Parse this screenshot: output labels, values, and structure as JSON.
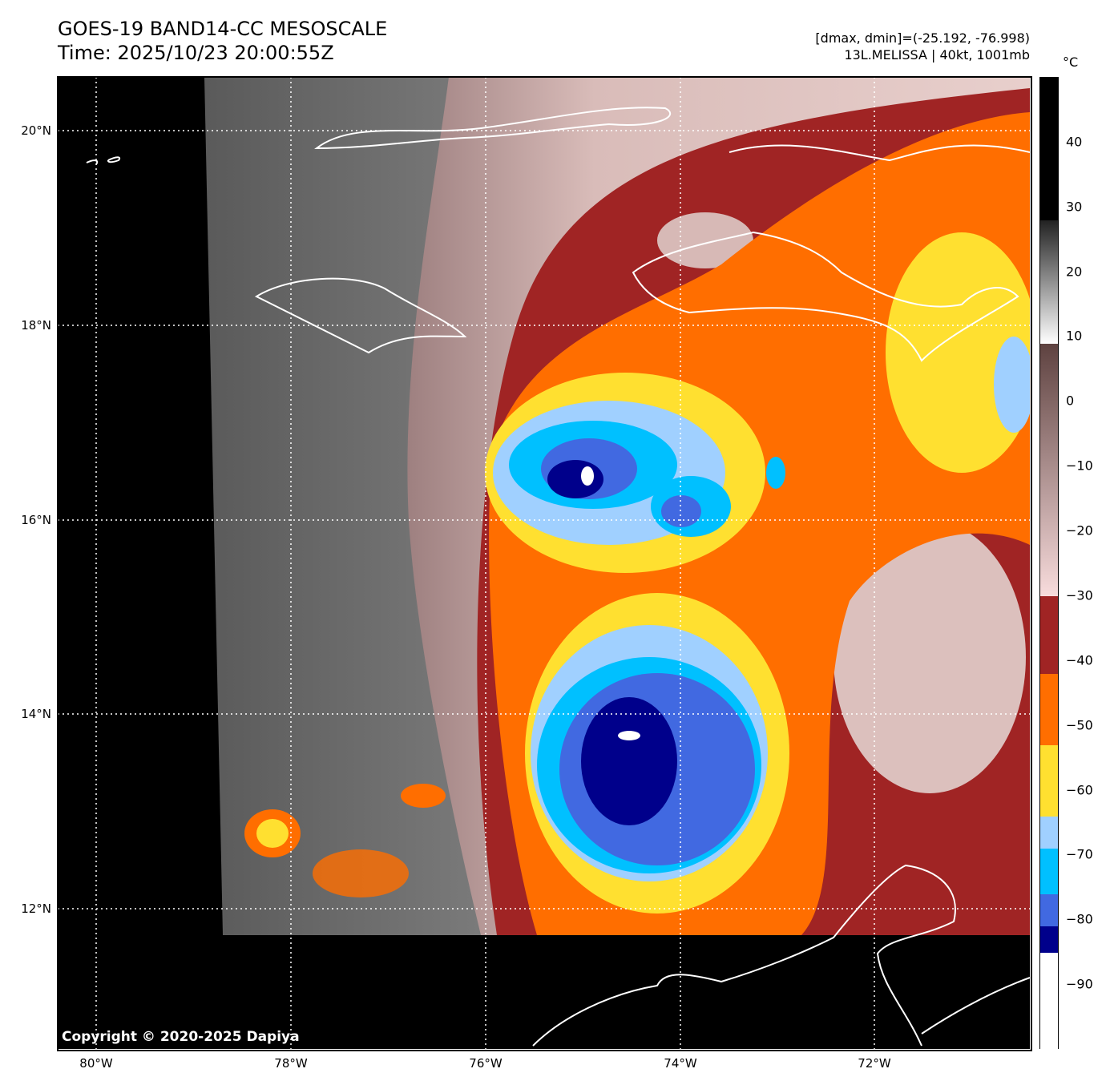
{
  "header": {
    "title": "GOES-19 BAND14-CC MESOSCALE",
    "time": "Time: 2025/10/23 20:00:55Z",
    "stats": "[dmax, dmin]=(-25.192, -76.998)",
    "storm": "13L.MELISSA | 40kt, 1001mb"
  },
  "copyright": "Copyright © 2020-2025 Dapiya",
  "chart_data": {
    "type": "heatmap",
    "title": "GOES-19 BAND14-CC MESOSCALE",
    "description_fields": {
      "dmax": -25.192,
      "dmin": -76.998,
      "storm": "13L.MELISSA",
      "intensity_kt": 40,
      "pressure_mb": 1001
    },
    "x_ticks": [
      {
        "value": -80,
        "label": "80°W"
      },
      {
        "value": -78,
        "label": "78°W"
      },
      {
        "value": -76,
        "label": "76°W"
      },
      {
        "value": -74,
        "label": "74°W"
      },
      {
        "value": -72,
        "label": "72°W"
      }
    ],
    "y_ticks": [
      {
        "value": 20,
        "label": "20°N"
      },
      {
        "value": 18,
        "label": "18°N"
      },
      {
        "value": 16,
        "label": "16°N"
      },
      {
        "value": 14,
        "label": "14°N"
      },
      {
        "value": 12,
        "label": "12°N"
      }
    ],
    "xlim": [
      -80.4,
      -70.4
    ],
    "ylim": [
      10.55,
      20.55
    ],
    "grid": true,
    "colorbar": {
      "unit": "°C",
      "range": [
        -100,
        50
      ],
      "ticks": [
        40,
        30,
        20,
        10,
        0,
        -10,
        -20,
        -30,
        -40,
        -50,
        -60,
        -70,
        -80,
        -90
      ],
      "tick_labels": [
        "40",
        "30",
        "20",
        "10",
        "0",
        "−10",
        "−20",
        "−30",
        "−40",
        "−50",
        "−60",
        "−70",
        "−80",
        "−90"
      ],
      "segments": [
        {
          "from": 28,
          "to": 50,
          "color": "#000000"
        },
        {
          "from": 9,
          "to": 28,
          "color": "gradient #222222→#ffffff"
        },
        {
          "from": -30,
          "to": 9,
          "color": "gradient #f8dcdc→#5e4240"
        },
        {
          "from": -42,
          "to": -30,
          "color": "#a02424"
        },
        {
          "from": -53,
          "to": -42,
          "color": "#ff6e00"
        },
        {
          "from": -64,
          "to": -53,
          "color": "#ffe030"
        },
        {
          "from": -69,
          "to": -64,
          "color": "#a0d0ff"
        },
        {
          "from": -76,
          "to": -69,
          "color": "#00c0ff"
        },
        {
          "from": -81,
          "to": -76,
          "color": "#4169e1"
        },
        {
          "from": -85,
          "to": -81,
          "color": "#00008b"
        },
        {
          "from": -100,
          "to": -85,
          "color": "#ffffff"
        }
      ]
    }
  }
}
